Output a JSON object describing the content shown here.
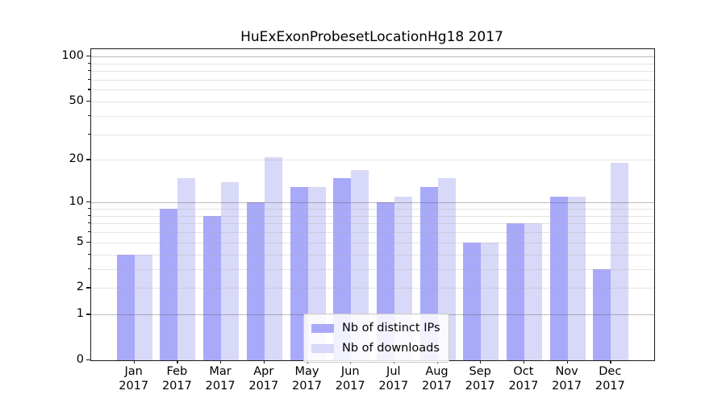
{
  "chart_data": {
    "type": "bar",
    "title": "HuExExonProbesetLocationHg18 2017",
    "categories": [
      "Jan 2017",
      "Feb 2017",
      "Mar 2017",
      "Apr 2017",
      "May 2017",
      "Jun 2017",
      "Jul 2017",
      "Aug 2017",
      "Sep 2017",
      "Oct 2017",
      "Nov 2017",
      "Dec 2017"
    ],
    "x_tick_month": [
      "Jan",
      "Feb",
      "Mar",
      "Apr",
      "May",
      "Jun",
      "Jul",
      "Aug",
      "Sep",
      "Oct",
      "Nov",
      "Dec"
    ],
    "x_tick_year": "2017",
    "series": [
      {
        "name": "Nb of distinct IPs",
        "color": "#a9a9fa",
        "values": [
          4,
          9,
          8,
          10,
          13,
          15,
          10,
          13,
          5,
          7,
          11,
          3
        ]
      },
      {
        "name": "Nb of downloads",
        "color": "#d8d8f8",
        "values": [
          4,
          15,
          14,
          21,
          13,
          17,
          11,
          15,
          5,
          7,
          11,
          19
        ]
      }
    ],
    "xlabel": "",
    "ylabel": "",
    "y_scale": "log1p",
    "ylim": [
      0,
      110
    ],
    "y_tick_values": [
      0,
      1,
      2,
      5,
      10,
      20,
      50,
      100
    ],
    "y_tick_labels": [
      "0",
      "1",
      "2",
      "5",
      "10",
      "20",
      "50",
      "100"
    ],
    "y_minor_tick_values": [
      3,
      4,
      6,
      7,
      8,
      9,
      30,
      40,
      60,
      70,
      80,
      90
    ],
    "major_gridline_values": [
      1,
      10,
      100
    ],
    "minor_gridline_values": [
      2,
      3,
      4,
      5,
      6,
      7,
      8,
      9,
      20,
      30,
      40,
      50,
      60,
      70,
      80,
      90
    ],
    "grid": true,
    "legend_position": "lower center",
    "colors": {
      "bar_dark": "#a9a9fa",
      "bar_light": "#d8d8f8",
      "spine": "#1c1c1c",
      "major_grid": "#b4b4b4",
      "minor_grid": "#e3e3e3",
      "background": "#ffffff"
    }
  }
}
